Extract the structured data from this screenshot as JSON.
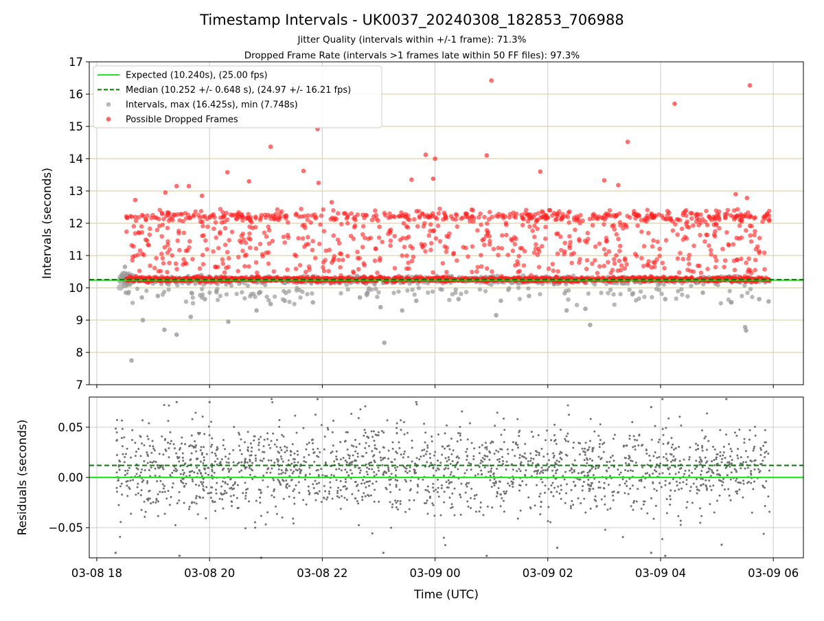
{
  "chart_data": [
    {
      "type": "scatter",
      "title": "Timestamp Intervals - UK0037_20240308_182853_706988",
      "subtitle_lines": [
        "Jitter Quality (intervals within +/-1 frame): 71.3%",
        "Dropped Frame Rate (intervals >1 frames late within 50 FF files): 97.3%"
      ],
      "xlabel": "",
      "ylabel": "Intervals (seconds)",
      "xlim": [
        "2024-03-08T17:52",
        "2024-03-09T06:32"
      ],
      "ylim": [
        7,
        17
      ],
      "yticks": [
        7,
        8,
        9,
        10,
        11,
        12,
        13,
        14,
        15,
        16,
        17
      ],
      "xticks": [
        "2024-03-08T18:00",
        "2024-03-08T20:00",
        "2024-03-08T22:00",
        "2024-03-09T00:00",
        "2024-03-09T02:00",
        "2024-03-09T04:00",
        "2024-03-09T06:00"
      ],
      "x_grid": true,
      "y_grid": true,
      "y_grid_color": "#d9c68c",
      "legend_placement": "top-left",
      "data_start": "2024-03-08T18:28",
      "data_end": "2024-03-09T05:56",
      "colors": {
        "expected": "#22e622",
        "median": "#007a00",
        "intervals": "#9a9a9a",
        "dropped": "#ff2020"
      },
      "series": [
        {
          "name": "Expected (10.240s), (25.00 fps)",
          "kind": "hline",
          "y": 10.24
        },
        {
          "name": "Median (10.252 +/- 0.648 s), (24.97 +/- 16.21 fps)",
          "kind": "hline-dashed",
          "y": 10.252
        },
        {
          "name": "Intervals, max (16.425s), min (7.748s)",
          "kind": "scatter",
          "baseline_y": 10.24,
          "points": [
            {
              "x": "2024-03-08T18:30",
              "y": 10.65
            },
            {
              "x": "2024-03-08T18:31",
              "y": 9.85
            },
            {
              "x": "2024-03-08T18:37",
              "y": 7.75
            },
            {
              "x": "2024-03-08T18:48",
              "y": 9.7
            },
            {
              "x": "2024-03-08T18:49",
              "y": 9.0
            },
            {
              "x": "2024-03-08T19:05",
              "y": 9.75
            },
            {
              "x": "2024-03-08T19:12",
              "y": 8.7
            },
            {
              "x": "2024-03-08T19:25",
              "y": 8.55
            },
            {
              "x": "2024-03-08T19:40",
              "y": 9.1
            },
            {
              "x": "2024-03-08T19:55",
              "y": 9.65
            },
            {
              "x": "2024-03-08T20:20",
              "y": 8.95
            },
            {
              "x": "2024-03-08T20:50",
              "y": 9.3
            },
            {
              "x": "2024-03-08T21:05",
              "y": 9.5
            },
            {
              "x": "2024-03-08T21:20",
              "y": 9.6
            },
            {
              "x": "2024-03-08T21:50",
              "y": 9.55
            },
            {
              "x": "2024-03-08T22:40",
              "y": 9.7
            },
            {
              "x": "2024-03-08T23:02",
              "y": 9.4
            },
            {
              "x": "2024-03-08T23:06",
              "y": 8.3
            },
            {
              "x": "2024-03-08T23:25",
              "y": 9.3
            },
            {
              "x": "2024-03-08T23:40",
              "y": 9.6
            },
            {
              "x": "2024-03-09T00:25",
              "y": 9.65
            },
            {
              "x": "2024-03-09T01:05",
              "y": 9.15
            },
            {
              "x": "2024-03-09T01:10",
              "y": 9.6
            },
            {
              "x": "2024-03-09T01:40",
              "y": 9.75
            },
            {
              "x": "2024-03-09T02:20",
              "y": 9.3
            },
            {
              "x": "2024-03-09T02:40",
              "y": 9.35
            },
            {
              "x": "2024-03-09T02:45",
              "y": 8.85
            },
            {
              "x": "2024-03-09T03:30",
              "y": 9.8
            },
            {
              "x": "2024-03-09T04:05",
              "y": 9.65
            },
            {
              "x": "2024-03-09T04:45",
              "y": 9.85
            },
            {
              "x": "2024-03-09T05:15",
              "y": 9.55
            },
            {
              "x": "2024-03-09T05:30",
              "y": 8.78
            },
            {
              "x": "2024-03-09T05:31",
              "y": 8.68
            },
            {
              "x": "2024-03-09T05:45",
              "y": 9.65
            },
            {
              "x": "2024-03-09T05:55",
              "y": 9.58
            }
          ]
        },
        {
          "name": "Possible Dropped Frames",
          "kind": "scatter",
          "points": [
            {
              "x": "2024-03-08T18:41",
              "y": 12.72
            },
            {
              "x": "2024-03-08T19:13",
              "y": 12.95
            },
            {
              "x": "2024-03-08T19:25",
              "y": 13.15
            },
            {
              "x": "2024-03-08T19:38",
              "y": 13.15
            },
            {
              "x": "2024-03-08T19:52",
              "y": 12.85
            },
            {
              "x": "2024-03-08T20:19",
              "y": 13.58
            },
            {
              "x": "2024-03-08T20:42",
              "y": 13.3
            },
            {
              "x": "2024-03-08T21:05",
              "y": 14.37
            },
            {
              "x": "2024-03-08T21:40",
              "y": 13.62
            },
            {
              "x": "2024-03-08T21:55",
              "y": 14.92
            },
            {
              "x": "2024-03-08T21:56",
              "y": 13.25
            },
            {
              "x": "2024-03-08T22:10",
              "y": 12.65
            },
            {
              "x": "2024-03-08T23:35",
              "y": 13.35
            },
            {
              "x": "2024-03-08T23:50",
              "y": 14.12
            },
            {
              "x": "2024-03-08T23:58",
              "y": 13.38
            },
            {
              "x": "2024-03-09T00:00",
              "y": 14.0
            },
            {
              "x": "2024-03-09T00:55",
              "y": 14.1
            },
            {
              "x": "2024-03-09T01:00",
              "y": 16.42
            },
            {
              "x": "2024-03-09T01:52",
              "y": 13.6
            },
            {
              "x": "2024-03-09T03:00",
              "y": 13.33
            },
            {
              "x": "2024-03-09T03:15",
              "y": 13.18
            },
            {
              "x": "2024-03-09T03:25",
              "y": 14.52
            },
            {
              "x": "2024-03-09T04:15",
              "y": 15.7
            },
            {
              "x": "2024-03-09T05:35",
              "y": 16.27
            },
            {
              "x": "2024-03-09T05:20",
              "y": 12.9
            },
            {
              "x": "2024-03-09T05:32",
              "y": 12.78
            }
          ]
        }
      ]
    },
    {
      "type": "scatter",
      "title": "",
      "xlabel": "Time (UTC)",
      "ylabel": "Residuals (seconds)",
      "xlim": [
        "2024-03-08T17:52",
        "2024-03-09T06:32"
      ],
      "ylim": [
        -0.08,
        0.08
      ],
      "yticks": [
        -0.05,
        0.0,
        0.05
      ],
      "ytick_labels": [
        "−0.05",
        "0.00",
        "0.05"
      ],
      "xticks": [
        "2024-03-08T18:00",
        "2024-03-08T20:00",
        "2024-03-08T22:00",
        "2024-03-09T00:00",
        "2024-03-09T02:00",
        "2024-03-09T04:00",
        "2024-03-09T06:00"
      ],
      "xtick_labels": [
        "03-08 18",
        "03-08 20",
        "03-08 22",
        "03-09 00",
        "03-09 02",
        "03-09 04",
        "03-09 06"
      ],
      "x_grid": true,
      "y_grid": true,
      "expected_line": 0.0,
      "median_line": 0.012,
      "residual_spread": 0.022,
      "residual_color": "#707070",
      "residual_range": [
        "2024-03-08T18:20",
        "2024-03-09T05:56"
      ],
      "residual_points": [
        {
          "x": "2024-03-08T18:20",
          "y": -0.075
        },
        {
          "x": "2024-03-08T19:25",
          "y": 0.075
        },
        {
          "x": "2024-03-08T19:28",
          "y": -0.078
        },
        {
          "x": "2024-03-08T20:00",
          "y": 0.075
        },
        {
          "x": "2024-03-08T20:55",
          "y": -0.08
        },
        {
          "x": "2024-03-08T21:55",
          "y": 0.078
        },
        {
          "x": "2024-03-08T23:40",
          "y": 0.075
        },
        {
          "x": "2024-03-08T23:05",
          "y": -0.075
        },
        {
          "x": "2024-03-09T00:55",
          "y": -0.078
        },
        {
          "x": "2024-03-09T02:10",
          "y": -0.07
        },
        {
          "x": "2024-03-09T03:50",
          "y": 0.07
        },
        {
          "x": "2024-03-09T03:50",
          "y": -0.075
        },
        {
          "x": "2024-03-09T04:02",
          "y": 0.078
        },
        {
          "x": "2024-03-09T04:05",
          "y": -0.078
        },
        {
          "x": "2024-03-09T05:10",
          "y": 0.078
        },
        {
          "x": "2024-03-09T05:05",
          "y": -0.067
        }
      ]
    }
  ]
}
